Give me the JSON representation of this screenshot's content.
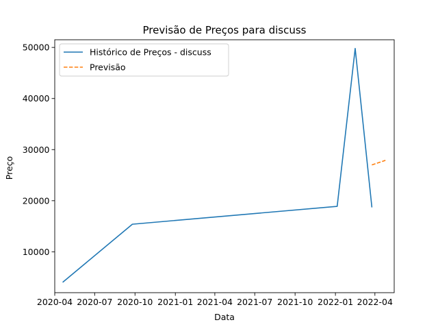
{
  "chart_data": {
    "type": "line",
    "title": "Previsão de Preços para discuss",
    "xlabel": "Data",
    "ylabel": "Preço",
    "x_type": "date",
    "xlim": [
      "2020-04-01",
      "2022-05-15"
    ],
    "ylim": [
      2000,
      51500
    ],
    "x_ticks": [
      {
        "date": "2020-04-01",
        "label": "2020-04"
      },
      {
        "date": "2020-07-01",
        "label": "2020-07"
      },
      {
        "date": "2020-10-01",
        "label": "2020-10"
      },
      {
        "date": "2021-01-01",
        "label": "2021-01"
      },
      {
        "date": "2021-04-01",
        "label": "2021-04"
      },
      {
        "date": "2021-07-01",
        "label": "2021-07"
      },
      {
        "date": "2021-10-01",
        "label": "2021-10"
      },
      {
        "date": "2022-01-01",
        "label": "2022-01"
      },
      {
        "date": "2022-04-01",
        "label": "2022-04"
      }
    ],
    "y_ticks": [
      10000,
      20000,
      30000,
      40000,
      50000
    ],
    "legend_position": "top-left",
    "grid": false,
    "series": [
      {
        "name": "Histórico de Preços - discuss",
        "color": "#1f77b4",
        "style": "solid",
        "points": [
          {
            "x": "2020-04-20",
            "y": 4100
          },
          {
            "x": "2020-09-25",
            "y": 15400
          },
          {
            "x": "2022-01-05",
            "y": 18900
          },
          {
            "x": "2022-02-15",
            "y": 49800
          },
          {
            "x": "2022-03-25",
            "y": 18800
          }
        ]
      },
      {
        "name": "Previsão",
        "color": "#ff7f0e",
        "style": "dashed",
        "points": [
          {
            "x": "2022-03-25",
            "y": 27000
          },
          {
            "x": "2022-04-25",
            "y": 27900
          }
        ]
      }
    ]
  }
}
